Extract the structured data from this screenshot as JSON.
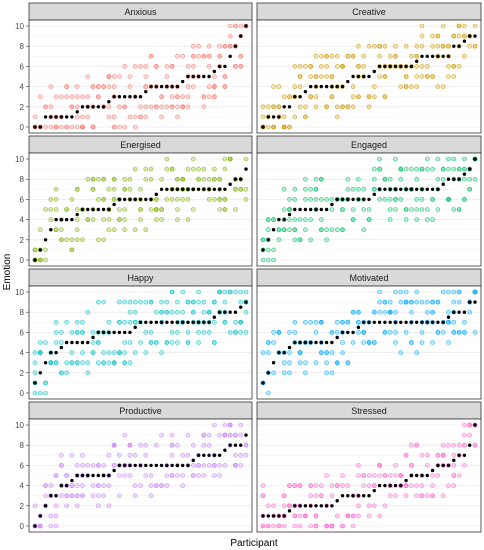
{
  "chart_data": {
    "type": "scatter",
    "layout": "facet grid, 4 rows x 2 columns",
    "xlabel": "Participant",
    "ylabel": "Emotion",
    "ylim": [
      0,
      10
    ],
    "yticks": [
      "0",
      "2",
      "4",
      "6",
      "8",
      "10"
    ],
    "x_tick_labels": "none",
    "grid": true,
    "legend": "none",
    "point_style": "open circles per response, filled black points = participant median, participants ordered by median",
    "median_color": "#000000",
    "facets": [
      {
        "name": "Anxious",
        "color": "#F8766D",
        "median_steps": [
          [
            0,
            0
          ],
          [
            2,
            1
          ],
          [
            8,
            1.5
          ],
          [
            9,
            2
          ],
          [
            14,
            2.5
          ],
          [
            15,
            3
          ],
          [
            21,
            3.5
          ],
          [
            22,
            4
          ],
          [
            28,
            4.5
          ],
          [
            29,
            5
          ],
          [
            34,
            5.5
          ],
          [
            35,
            6
          ],
          [
            37,
            7
          ],
          [
            38,
            8
          ],
          [
            39,
            9
          ],
          [
            40,
            10
          ]
        ]
      },
      {
        "name": "Creative",
        "color": "#CD9600",
        "median_steps": [
          [
            0,
            0
          ],
          [
            1,
            1
          ],
          [
            4,
            2
          ],
          [
            6,
            3
          ],
          [
            8,
            3.5
          ],
          [
            9,
            4
          ],
          [
            16,
            4.5
          ],
          [
            17,
            5
          ],
          [
            21,
            5.5
          ],
          [
            22,
            6
          ],
          [
            29,
            6.5
          ],
          [
            30,
            7
          ],
          [
            36,
            8
          ],
          [
            38,
            8.5
          ],
          [
            39,
            9
          ]
        ]
      },
      {
        "name": "Energised",
        "color": "#7CAE00",
        "median_steps": [
          [
            0,
            0
          ],
          [
            1,
            1
          ],
          [
            2,
            2
          ],
          [
            3,
            3
          ],
          [
            4,
            4
          ],
          [
            8,
            4.5
          ],
          [
            9,
            5
          ],
          [
            15,
            5.5
          ],
          [
            16,
            6
          ],
          [
            23,
            6.5
          ],
          [
            24,
            7
          ],
          [
            37,
            7.5
          ],
          [
            38,
            8
          ],
          [
            40,
            9
          ]
        ]
      },
      {
        "name": "Engaged",
        "color": "#00BE67",
        "median_steps": [
          [
            0,
            1
          ],
          [
            1,
            2
          ],
          [
            2,
            3
          ],
          [
            3,
            4
          ],
          [
            5,
            4.5
          ],
          [
            6,
            5
          ],
          [
            13,
            5.5
          ],
          [
            14,
            6
          ],
          [
            21,
            6.5
          ],
          [
            22,
            7
          ],
          [
            34,
            7.5
          ],
          [
            35,
            8
          ],
          [
            38,
            8.5
          ],
          [
            39,
            9
          ],
          [
            40,
            10
          ]
        ]
      },
      {
        "name": "Happy",
        "color": "#00BFC4",
        "median_steps": [
          [
            0,
            1
          ],
          [
            1,
            2
          ],
          [
            2,
            3
          ],
          [
            3,
            4
          ],
          [
            5,
            4.5
          ],
          [
            6,
            5
          ],
          [
            11,
            5.5
          ],
          [
            12,
            6
          ],
          [
            19,
            6.5
          ],
          [
            20,
            7
          ],
          [
            34,
            7.5
          ],
          [
            35,
            8
          ],
          [
            39,
            8.5
          ],
          [
            40,
            9
          ]
        ]
      },
      {
        "name": "Motivated",
        "color": "#00A9FF",
        "median_steps": [
          [
            0,
            1
          ],
          [
            1,
            2
          ],
          [
            2,
            3
          ],
          [
            3,
            4
          ],
          [
            5,
            4.5
          ],
          [
            6,
            5
          ],
          [
            14,
            5.5
          ],
          [
            15,
            6
          ],
          [
            18,
            6.5
          ],
          [
            19,
            7
          ],
          [
            35,
            7.5
          ],
          [
            36,
            8
          ],
          [
            39,
            9
          ]
        ]
      },
      {
        "name": "Productive",
        "color": "#C77CFF",
        "median_steps": [
          [
            0,
            0
          ],
          [
            1,
            1
          ],
          [
            2,
            2
          ],
          [
            3,
            3
          ],
          [
            5,
            4
          ],
          [
            7,
            4.5
          ],
          [
            8,
            5
          ],
          [
            15,
            5.5
          ],
          [
            16,
            6
          ],
          [
            30,
            6.5
          ],
          [
            31,
            7
          ],
          [
            36,
            7.5
          ],
          [
            37,
            8
          ],
          [
            40,
            9
          ]
        ]
      },
      {
        "name": "Stressed",
        "color": "#FF61CC",
        "median_steps": [
          [
            0,
            1
          ],
          [
            5,
            1.5
          ],
          [
            6,
            2
          ],
          [
            14,
            2.5
          ],
          [
            15,
            3
          ],
          [
            21,
            3.5
          ],
          [
            22,
            4
          ],
          [
            27,
            4.5
          ],
          [
            28,
            5
          ],
          [
            32,
            5.5
          ],
          [
            33,
            6
          ],
          [
            36,
            6.5
          ],
          [
            37,
            7
          ],
          [
            39,
            8
          ],
          [
            40,
            10
          ]
        ]
      }
    ]
  }
}
